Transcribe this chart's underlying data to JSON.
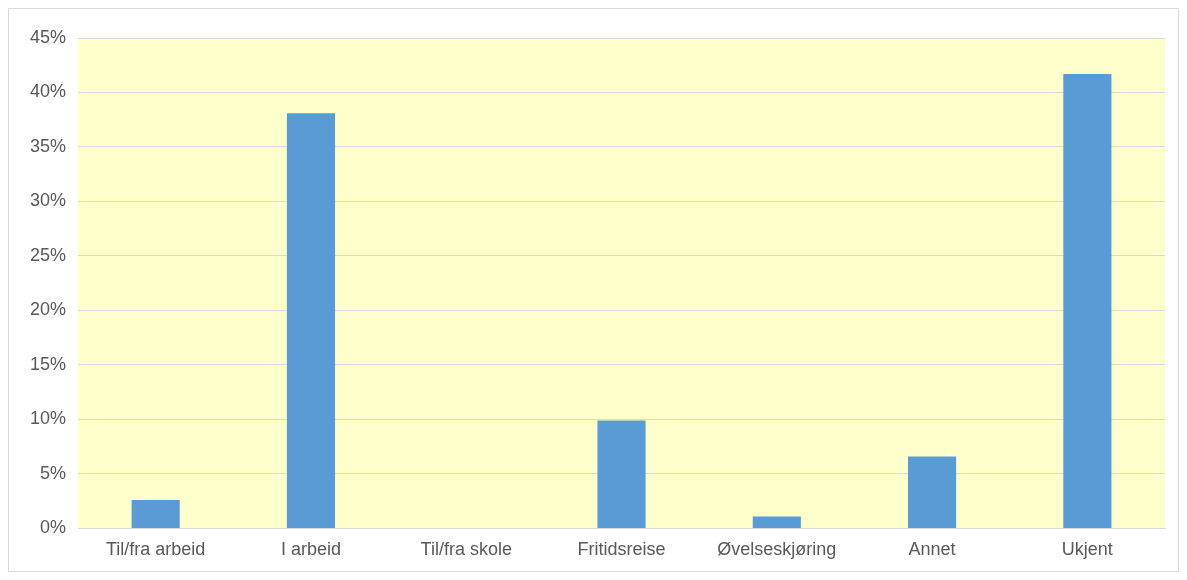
{
  "chart_data": {
    "type": "bar",
    "categories": [
      "Til/fra arbeid",
      "I arbeid",
      "Til/fra skole",
      "Fritidsreise",
      "Øvelseskjøring",
      "Annet",
      "Ukjent"
    ],
    "values": [
      2.6,
      38.1,
      0,
      9.9,
      1.1,
      6.6,
      41.7
    ],
    "color": "#5b9bd5",
    "ylim": [
      0,
      45
    ],
    "yticks": [
      {
        "value": 0,
        "label": "0%"
      },
      {
        "value": 5,
        "label": "5%"
      },
      {
        "value": 10,
        "label": "10%"
      },
      {
        "value": 15,
        "label": "15%"
      },
      {
        "value": 20,
        "label": "20%"
      },
      {
        "value": 25,
        "label": "25%"
      },
      {
        "value": 30,
        "label": "30%"
      },
      {
        "value": 35,
        "label": "35%"
      },
      {
        "value": 40,
        "label": "40%"
      },
      {
        "value": 45,
        "label": "45%"
      }
    ],
    "grid": "y",
    "legend": false
  }
}
